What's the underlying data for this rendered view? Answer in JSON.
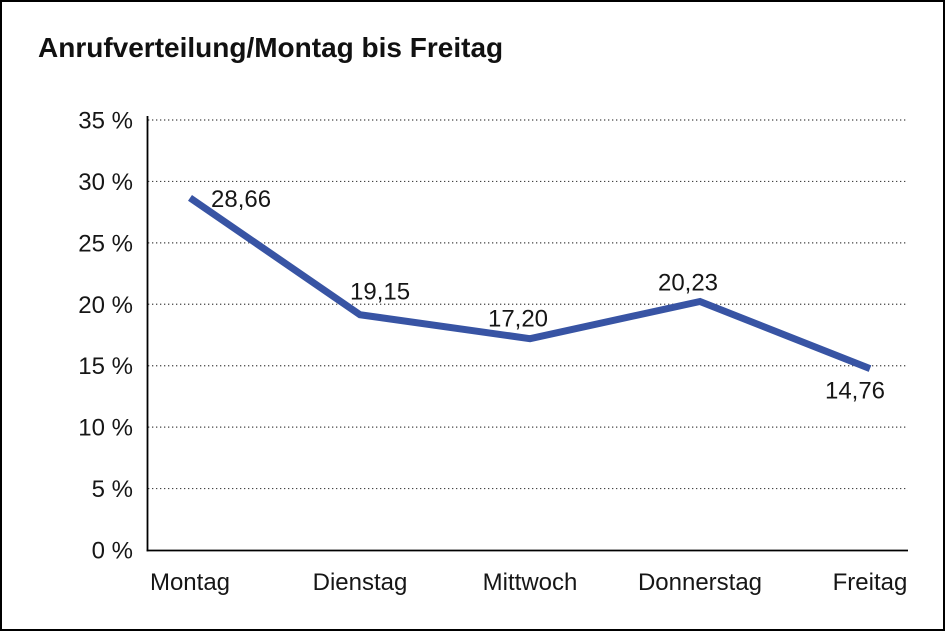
{
  "chart_data": {
    "type": "line",
    "title": "Anrufverteilung/Montag bis Freitag",
    "categories": [
      "Montag",
      "Dienstag",
      "Mittwoch",
      "Donnerstag",
      "Freitag"
    ],
    "series": [
      {
        "name": "Anrufverteilung",
        "values": [
          28.66,
          19.15,
          17.2,
          20.23,
          14.76
        ],
        "value_labels": [
          "28,66",
          "19,15",
          "17,20",
          "20,23",
          "14,76"
        ]
      }
    ],
    "xlabel": "",
    "ylabel": "",
    "ylim": [
      0,
      35
    ],
    "ytick_step": 5,
    "ytick_labels": [
      "0 %",
      "5 %",
      "10 %",
      "15 %",
      "20 %",
      "25 %",
      "30 %",
      "35 %"
    ],
    "grid": "horizontal-dotted",
    "legend": null,
    "colors": {
      "line": "#3854A4",
      "axis": "#000000",
      "gridline": "#444444",
      "text": "#161616",
      "background": "#ffffff",
      "frame_border": "#000000"
    }
  }
}
